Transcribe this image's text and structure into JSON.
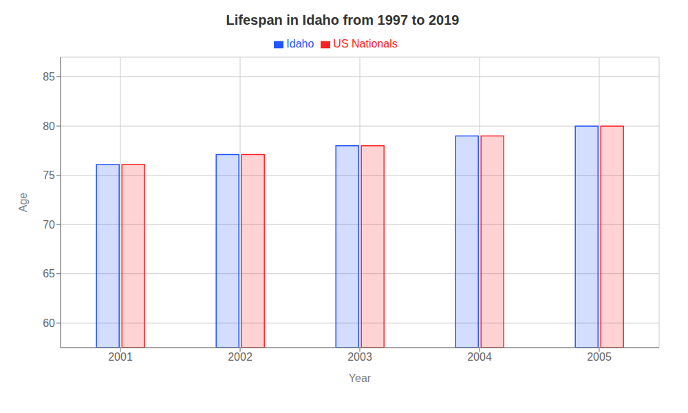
{
  "chart_data": {
    "type": "bar",
    "title": "Lifespan in Idaho from 1997 to 2019",
    "xlabel": "Year",
    "ylabel": "Age",
    "categories": [
      "2001",
      "2002",
      "2003",
      "2004",
      "2005"
    ],
    "series": [
      {
        "name": "Idaho",
        "color": "#2255ff",
        "values": [
          76.1,
          77.1,
          78.0,
          79.0,
          80.0
        ]
      },
      {
        "name": "US Nationals",
        "color": "#ff2222",
        "values": [
          76.1,
          77.1,
          78.0,
          79.0,
          80.0
        ]
      }
    ],
    "ylim": [
      57.5,
      87
    ],
    "yticks": [
      60,
      65,
      70,
      75,
      80,
      85
    ],
    "grid": true,
    "legend": "top"
  }
}
